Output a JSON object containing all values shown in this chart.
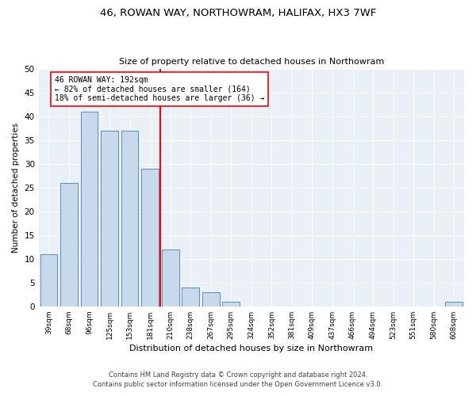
{
  "title": "46, ROWAN WAY, NORTHOWRAM, HALIFAX, HX3 7WF",
  "subtitle": "Size of property relative to detached houses in Northowram",
  "xlabel": "Distribution of detached houses by size in Northowram",
  "ylabel": "Number of detached properties",
  "bin_labels": [
    "39sqm",
    "68sqm",
    "96sqm",
    "125sqm",
    "153sqm",
    "181sqm",
    "210sqm",
    "238sqm",
    "267sqm",
    "295sqm",
    "324sqm",
    "352sqm",
    "381sqm",
    "409sqm",
    "437sqm",
    "466sqm",
    "494sqm",
    "523sqm",
    "551sqm",
    "580sqm",
    "608sqm"
  ],
  "bar_values": [
    11,
    26,
    41,
    37,
    37,
    29,
    12,
    4,
    3,
    1,
    0,
    0,
    0,
    0,
    0,
    0,
    0,
    0,
    0,
    0,
    1
  ],
  "bar_color": "#c9d9ed",
  "bar_edge_color": "#5b8db8",
  "property_line_x": 5.5,
  "annotation_line1": "46 ROWAN WAY: 192sqm",
  "annotation_line2": "← 82% of detached houses are smaller (164)",
  "annotation_line3": "18% of semi-detached houses are larger (36) →",
  "vline_color": "red",
  "ylim": [
    0,
    50
  ],
  "yticks": [
    0,
    5,
    10,
    15,
    20,
    25,
    30,
    35,
    40,
    45,
    50
  ],
  "footer1": "Contains HM Land Registry data © Crown copyright and database right 2024.",
  "footer2": "Contains public sector information licensed under the Open Government Licence v3.0.",
  "plot_bg_color": "#eaf0f8"
}
